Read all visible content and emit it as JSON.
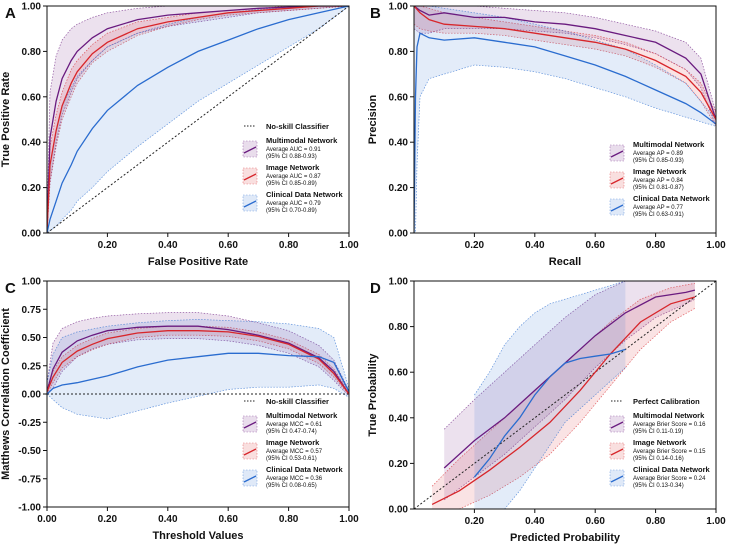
{
  "colors": {
    "multimodal": "#6a1b7f",
    "image": "#d7262b",
    "clinical": "#2a6ccf",
    "diag": "#222222"
  },
  "chart_data": [
    {
      "panel": "A",
      "type": "line",
      "title": "",
      "xlabel": "False Positive Rate",
      "ylabel": "True Positive Rate",
      "xlim": [
        0,
        1
      ],
      "ylim": [
        0,
        1
      ],
      "xticks": [
        "0.20",
        "0.40",
        "0.60",
        "0.80",
        "1.00"
      ],
      "yticks": [
        "0.00",
        "0.20",
        "0.40",
        "0.60",
        "0.80",
        "1.00"
      ],
      "legend_position": "bottom-right",
      "reference": {
        "name": "No-skill Classifier",
        "x": [
          0,
          1
        ],
        "y": [
          0,
          1
        ]
      },
      "series": [
        {
          "key": "multimodal",
          "name": "Multimodal Network",
          "stat": "Average AUC = 0.91",
          "ci": "(95% CI 0.88-0.93)",
          "x": [
            0,
            0.01,
            0.03,
            0.05,
            0.08,
            0.1,
            0.15,
            0.2,
            0.3,
            0.4,
            0.5,
            0.6,
            0.7,
            0.8,
            0.9,
            1.0
          ],
          "y": [
            0,
            0.42,
            0.58,
            0.68,
            0.76,
            0.8,
            0.86,
            0.9,
            0.94,
            0.96,
            0.97,
            0.98,
            0.99,
            0.995,
            1.0,
            1.0
          ],
          "lo": [
            0,
            0.22,
            0.4,
            0.52,
            0.62,
            0.68,
            0.76,
            0.82,
            0.88,
            0.91,
            0.93,
            0.95,
            0.97,
            0.98,
            0.99,
            1.0
          ],
          "hi": [
            0.05,
            0.62,
            0.78,
            0.85,
            0.9,
            0.92,
            0.95,
            0.97,
            0.99,
            1.0,
            1.0,
            1.0,
            1.0,
            1.0,
            1.0,
            1.0
          ]
        },
        {
          "key": "image",
          "name": "Image Network",
          "stat": "Average AUC = 0.87",
          "ci": "(95% CI 0.85-0.89)",
          "x": [
            0,
            0.01,
            0.03,
            0.05,
            0.08,
            0.1,
            0.15,
            0.2,
            0.3,
            0.4,
            0.5,
            0.6,
            0.7,
            0.8,
            0.9,
            1.0
          ],
          "y": [
            0,
            0.3,
            0.45,
            0.56,
            0.66,
            0.71,
            0.79,
            0.84,
            0.9,
            0.93,
            0.95,
            0.97,
            0.98,
            0.99,
            1.0,
            1.0
          ],
          "lo": [
            0,
            0.22,
            0.38,
            0.5,
            0.6,
            0.66,
            0.75,
            0.8,
            0.87,
            0.91,
            0.94,
            0.96,
            0.97,
            0.98,
            0.99,
            1.0
          ],
          "hi": [
            0.02,
            0.38,
            0.52,
            0.62,
            0.72,
            0.76,
            0.83,
            0.88,
            0.93,
            0.95,
            0.97,
            0.98,
            0.99,
            1.0,
            1.0,
            1.0
          ]
        },
        {
          "key": "clinical",
          "name": "Clinical Data Network",
          "stat": "Average AUC = 0.79",
          "ci": "(95% CI 0.70-0.89)",
          "x": [
            0,
            0.01,
            0.03,
            0.05,
            0.08,
            0.1,
            0.15,
            0.2,
            0.3,
            0.4,
            0.5,
            0.6,
            0.7,
            0.8,
            0.9,
            1.0
          ],
          "y": [
            0,
            0.06,
            0.14,
            0.22,
            0.3,
            0.36,
            0.46,
            0.54,
            0.65,
            0.73,
            0.8,
            0.85,
            0.9,
            0.94,
            0.97,
            1.0
          ],
          "lo": [
            0,
            0.01,
            0.03,
            0.06,
            0.1,
            0.14,
            0.2,
            0.27,
            0.38,
            0.48,
            0.58,
            0.66,
            0.74,
            0.82,
            0.9,
            1.0
          ],
          "hi": [
            0.05,
            0.3,
            0.45,
            0.56,
            0.64,
            0.69,
            0.76,
            0.82,
            0.88,
            0.92,
            0.95,
            0.97,
            0.985,
            0.995,
            1.0,
            1.0
          ]
        }
      ]
    },
    {
      "panel": "B",
      "type": "line",
      "title": "",
      "xlabel": "Recall",
      "ylabel": "Precision",
      "xlim": [
        0,
        1
      ],
      "ylim": [
        0,
        1
      ],
      "xticks": [
        "0.20",
        "0.40",
        "0.60",
        "0.80",
        "1.00"
      ],
      "yticks": [
        "0.00",
        "0.20",
        "0.40",
        "0.60",
        "0.80",
        "1.00"
      ],
      "legend_position": "bottom-right",
      "series": [
        {
          "key": "multimodal",
          "name": "Multimodal Network",
          "stat": "Average AP = 0.89",
          "ci": "(95% CI 0.85-0.93)",
          "x": [
            0.0,
            0.02,
            0.05,
            0.1,
            0.2,
            0.3,
            0.4,
            0.5,
            0.6,
            0.7,
            0.8,
            0.9,
            0.95,
            1.0
          ],
          "y": [
            1.0,
            0.98,
            0.96,
            0.97,
            0.95,
            0.95,
            0.93,
            0.92,
            0.9,
            0.87,
            0.84,
            0.77,
            0.7,
            0.5
          ],
          "lo": [
            0.9,
            0.88,
            0.88,
            0.9,
            0.9,
            0.9,
            0.89,
            0.88,
            0.86,
            0.83,
            0.79,
            0.72,
            0.64,
            0.47
          ],
          "hi": [
            1.0,
            1.0,
            1.0,
            1.0,
            1.0,
            0.99,
            0.98,
            0.97,
            0.95,
            0.92,
            0.89,
            0.84,
            0.77,
            0.53
          ]
        },
        {
          "key": "image",
          "name": "Image Network",
          "stat": "Average AP = 0.84",
          "ci": "(95% CI 0.81-0.87)",
          "x": [
            0.0,
            0.02,
            0.05,
            0.1,
            0.2,
            0.3,
            0.4,
            0.5,
            0.6,
            0.7,
            0.8,
            0.9,
            0.95,
            1.0
          ],
          "y": [
            1.0,
            0.97,
            0.94,
            0.92,
            0.91,
            0.9,
            0.88,
            0.86,
            0.84,
            0.81,
            0.76,
            0.69,
            0.62,
            0.5
          ],
          "lo": [
            0.92,
            0.9,
            0.89,
            0.88,
            0.88,
            0.87,
            0.85,
            0.83,
            0.81,
            0.78,
            0.73,
            0.66,
            0.58,
            0.47
          ],
          "hi": [
            1.0,
            1.0,
            0.99,
            0.97,
            0.95,
            0.93,
            0.91,
            0.89,
            0.87,
            0.84,
            0.79,
            0.72,
            0.66,
            0.53
          ]
        },
        {
          "key": "clinical",
          "name": "Clinical Data Network",
          "stat": "Average AP = 0.77",
          "ci": "(95% CI 0.63-0.91)",
          "x": [
            0.0,
            0.005,
            0.01,
            0.02,
            0.05,
            0.1,
            0.2,
            0.3,
            0.4,
            0.5,
            0.6,
            0.7,
            0.8,
            0.9,
            0.95,
            1.0
          ],
          "y": [
            0.0,
            0.6,
            0.82,
            0.88,
            0.86,
            0.85,
            0.86,
            0.84,
            0.82,
            0.78,
            0.74,
            0.69,
            0.63,
            0.57,
            0.53,
            0.48
          ],
          "lo": [
            0.0,
            0.0,
            0.3,
            0.6,
            0.68,
            0.7,
            0.74,
            0.73,
            0.71,
            0.68,
            0.64,
            0.6,
            0.55,
            0.51,
            0.49,
            0.47
          ],
          "hi": [
            1.0,
            1.0,
            1.0,
            1.0,
            1.0,
            0.99,
            0.97,
            0.95,
            0.92,
            0.89,
            0.85,
            0.81,
            0.74,
            0.66,
            0.58,
            0.5
          ]
        }
      ]
    },
    {
      "panel": "C",
      "type": "line",
      "title": "",
      "xlabel": "Threshold Values",
      "ylabel": "Matthews Correlation Coefficient",
      "xlim": [
        0,
        1
      ],
      "ylim": [
        -1,
        1
      ],
      "xticks": [
        "0.00",
        "0.20",
        "0.40",
        "0.60",
        "0.80",
        "1.00"
      ],
      "yticks": [
        "-1.00",
        "-0.75",
        "-0.50",
        "-0.25",
        "0.00",
        "0.25",
        "0.50",
        "0.75",
        "1.00"
      ],
      "legend_position": "bottom-right",
      "reference": {
        "name": "No-skill Classifier",
        "x": [
          0,
          1
        ],
        "y": [
          0,
          0
        ]
      },
      "series": [
        {
          "key": "multimodal",
          "name": "Multimodal Network",
          "stat": "Average MCC = 0.61",
          "ci": "(95% CI 0.47-0.74)",
          "x": [
            0.0,
            0.02,
            0.05,
            0.1,
            0.15,
            0.2,
            0.3,
            0.4,
            0.5,
            0.6,
            0.7,
            0.8,
            0.9,
            0.95,
            1.0
          ],
          "y": [
            0.02,
            0.22,
            0.37,
            0.47,
            0.52,
            0.56,
            0.59,
            0.6,
            0.6,
            0.57,
            0.52,
            0.45,
            0.32,
            0.2,
            0.0
          ],
          "lo": [
            0.0,
            0.05,
            0.2,
            0.33,
            0.4,
            0.44,
            0.48,
            0.49,
            0.49,
            0.47,
            0.43,
            0.36,
            0.24,
            0.12,
            -0.02
          ],
          "hi": [
            0.1,
            0.45,
            0.58,
            0.64,
            0.67,
            0.69,
            0.71,
            0.72,
            0.72,
            0.69,
            0.63,
            0.56,
            0.43,
            0.3,
            0.03
          ]
        },
        {
          "key": "image",
          "name": "Image Network",
          "stat": "Average MCC = 0.57",
          "ci": "(95% CI 0.53-0.61)",
          "x": [
            0.0,
            0.02,
            0.05,
            0.1,
            0.15,
            0.2,
            0.3,
            0.4,
            0.5,
            0.6,
            0.7,
            0.8,
            0.9,
            0.95,
            1.0
          ],
          "y": [
            0.02,
            0.15,
            0.28,
            0.38,
            0.44,
            0.49,
            0.54,
            0.56,
            0.56,
            0.55,
            0.51,
            0.44,
            0.31,
            0.18,
            0.0
          ],
          "lo": [
            0.0,
            0.1,
            0.23,
            0.33,
            0.39,
            0.44,
            0.5,
            0.52,
            0.52,
            0.51,
            0.47,
            0.4,
            0.27,
            0.15,
            -0.01
          ],
          "hi": [
            0.05,
            0.2,
            0.33,
            0.43,
            0.49,
            0.54,
            0.58,
            0.6,
            0.6,
            0.59,
            0.55,
            0.48,
            0.35,
            0.22,
            0.02
          ]
        },
        {
          "key": "clinical",
          "name": "Clinical Data Network",
          "stat": "Average MCC = 0.36",
          "ci": "(95% CI 0.08-0.65)",
          "x": [
            0.0,
            0.02,
            0.05,
            0.1,
            0.2,
            0.3,
            0.4,
            0.5,
            0.6,
            0.7,
            0.8,
            0.9,
            0.95,
            1.0
          ],
          "y": [
            0.0,
            0.05,
            0.08,
            0.1,
            0.16,
            0.24,
            0.3,
            0.33,
            0.36,
            0.36,
            0.34,
            0.33,
            0.28,
            0.02
          ],
          "lo": [
            0.0,
            -0.05,
            -0.12,
            -0.18,
            -0.22,
            -0.15,
            -0.08,
            -0.02,
            0.04,
            0.06,
            0.06,
            0.08,
            0.05,
            -0.03
          ],
          "hi": [
            0.1,
            0.35,
            0.5,
            0.55,
            0.6,
            0.63,
            0.65,
            0.66,
            0.65,
            0.64,
            0.62,
            0.58,
            0.5,
            0.05
          ]
        }
      ]
    },
    {
      "panel": "D",
      "type": "line",
      "title": "",
      "xlabel": "Predicted Probability",
      "ylabel": "True Probability",
      "xlim": [
        0,
        1
      ],
      "ylim": [
        0,
        1
      ],
      "xticks": [
        "0.20",
        "0.40",
        "0.60",
        "0.80",
        "1.00"
      ],
      "yticks": [
        "0.00",
        "0.20",
        "0.40",
        "0.60",
        "0.80",
        "1.00"
      ],
      "legend_position": "bottom-right",
      "reference": {
        "name": "Perfect Calibration",
        "x": [
          0,
          1
        ],
        "y": [
          0,
          1
        ]
      },
      "series": [
        {
          "key": "multimodal",
          "name": "Multimodal Network",
          "stat": "Average Brier Score = 0.16",
          "ci": "(95% CI 0.11-0.19)",
          "x": [
            0.1,
            0.2,
            0.3,
            0.4,
            0.5,
            0.6,
            0.7,
            0.8,
            0.9,
            0.93
          ],
          "y": [
            0.18,
            0.3,
            0.4,
            0.52,
            0.64,
            0.76,
            0.86,
            0.93,
            0.95,
            0.96
          ],
          "lo": [
            0.04,
            0.14,
            0.24,
            0.36,
            0.48,
            0.62,
            0.74,
            0.84,
            0.9,
            0.92
          ],
          "hi": [
            0.35,
            0.48,
            0.6,
            0.72,
            0.84,
            0.94,
            1.0,
            1.0,
            1.0,
            1.0
          ]
        },
        {
          "key": "image",
          "name": "Image Network",
          "stat": "Average Brier Score = 0.15",
          "ci": "(95% CI 0.14-0.16)",
          "x": [
            0.06,
            0.15,
            0.25,
            0.35,
            0.45,
            0.55,
            0.65,
            0.75,
            0.85,
            0.93
          ],
          "y": [
            0.02,
            0.08,
            0.17,
            0.27,
            0.38,
            0.52,
            0.68,
            0.82,
            0.9,
            0.93
          ],
          "lo": [
            0.0,
            0.0,
            0.06,
            0.14,
            0.24,
            0.38,
            0.54,
            0.7,
            0.82,
            0.88
          ],
          "hi": [
            0.1,
            0.22,
            0.34,
            0.46,
            0.58,
            0.7,
            0.82,
            0.92,
            0.97,
            0.99
          ]
        },
        {
          "key": "clinical",
          "name": "Clinical Data Network",
          "stat": "Average Brier Score = 0.24",
          "ci": "(95% CI 0.13-0.34)",
          "x": [
            0.2,
            0.25,
            0.3,
            0.35,
            0.4,
            0.45,
            0.5,
            0.55,
            0.6,
            0.65,
            0.7
          ],
          "y": [
            0.14,
            0.22,
            0.32,
            0.4,
            0.5,
            0.58,
            0.64,
            0.66,
            0.67,
            0.68,
            0.7
          ],
          "lo": [
            0.0,
            0.0,
            0.0,
            0.08,
            0.18,
            0.28,
            0.38,
            0.44,
            0.5,
            0.56,
            0.62
          ],
          "hi": [
            0.5,
            0.6,
            0.72,
            0.8,
            0.86,
            0.9,
            0.92,
            0.94,
            0.96,
            0.98,
            1.0
          ]
        }
      ]
    }
  ]
}
